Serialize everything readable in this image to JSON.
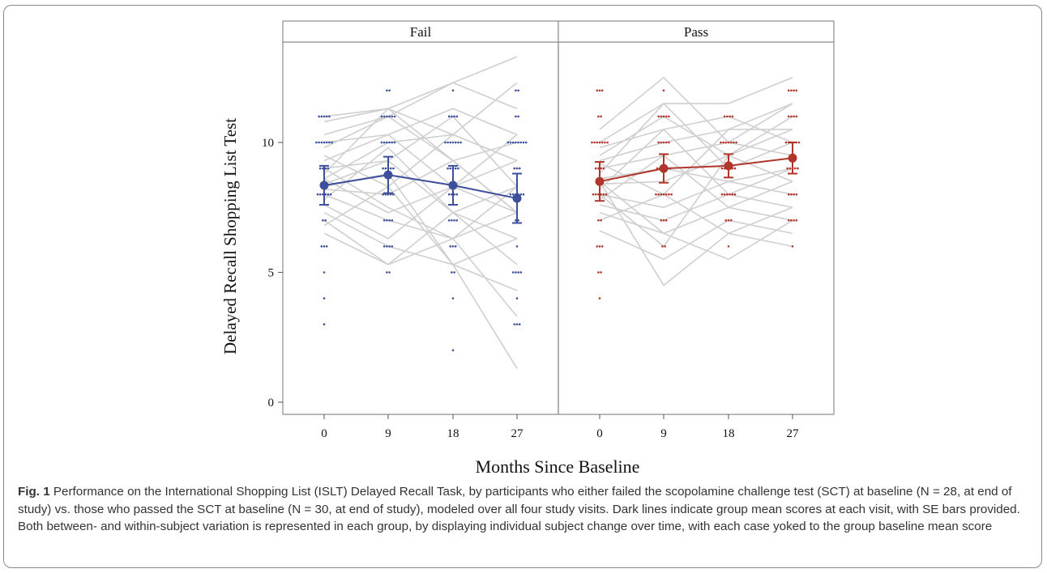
{
  "chart_data": {
    "type": "scatter",
    "title": "",
    "xlabel": "Months Since Baseline",
    "ylabel": "Delayed Recall Shopping List Test",
    "ylim": [
      0,
      14
    ],
    "yticks": [
      0,
      5,
      10
    ],
    "xticks": [
      0,
      9,
      18,
      27
    ],
    "grid": false,
    "panels": [
      {
        "name": "Fail",
        "color": "#3d4f9b",
        "mean_series": {
          "x": [
            0,
            9,
            18,
            27
          ],
          "y": [
            8.35,
            8.75,
            8.35,
            7.85
          ]
        },
        "se": [
          0.75,
          0.7,
          0.75,
          0.95
        ],
        "points": [
          {
            "x": 0,
            "y": 11,
            "n": 5
          },
          {
            "x": 0,
            "y": 10,
            "n": 7
          },
          {
            "x": 0,
            "y": 9,
            "n": 4
          },
          {
            "x": 0,
            "y": 8,
            "n": 6
          },
          {
            "x": 0,
            "y": 7,
            "n": 2
          },
          {
            "x": 0,
            "y": 6,
            "n": 3
          },
          {
            "x": 0,
            "y": 5,
            "n": 1
          },
          {
            "x": 0,
            "y": 4,
            "n": 1
          },
          {
            "x": 0,
            "y": 3,
            "n": 1
          },
          {
            "x": 9,
            "y": 12,
            "n": 2
          },
          {
            "x": 9,
            "y": 11,
            "n": 6
          },
          {
            "x": 9,
            "y": 10,
            "n": 6
          },
          {
            "x": 9,
            "y": 9,
            "n": 5
          },
          {
            "x": 9,
            "y": 8,
            "n": 5
          },
          {
            "x": 9,
            "y": 7,
            "n": 4
          },
          {
            "x": 9,
            "y": 6,
            "n": 4
          },
          {
            "x": 9,
            "y": 5,
            "n": 2
          },
          {
            "x": 18,
            "y": 12,
            "n": 1
          },
          {
            "x": 18,
            "y": 11,
            "n": 4
          },
          {
            "x": 18,
            "y": 10,
            "n": 7
          },
          {
            "x": 18,
            "y": 9,
            "n": 5
          },
          {
            "x": 18,
            "y": 8,
            "n": 4
          },
          {
            "x": 18,
            "y": 7,
            "n": 4
          },
          {
            "x": 18,
            "y": 6,
            "n": 3
          },
          {
            "x": 18,
            "y": 5,
            "n": 2
          },
          {
            "x": 18,
            "y": 4,
            "n": 1
          },
          {
            "x": 18,
            "y": 2,
            "n": 1
          },
          {
            "x": 27,
            "y": 12,
            "n": 2
          },
          {
            "x": 27,
            "y": 11,
            "n": 2
          },
          {
            "x": 27,
            "y": 10,
            "n": 8
          },
          {
            "x": 27,
            "y": 9,
            "n": 3
          },
          {
            "x": 27,
            "y": 8,
            "n": 6
          },
          {
            "x": 27,
            "y": 7,
            "n": 2
          },
          {
            "x": 27,
            "y": 6,
            "n": 1
          },
          {
            "x": 27,
            "y": 5,
            "n": 4
          },
          {
            "x": 27,
            "y": 4,
            "n": 1
          },
          {
            "x": 27,
            "y": 3,
            "n": 3
          }
        ]
      },
      {
        "name": "Pass",
        "color": "#b0362b",
        "mean_series": {
          "x": [
            0,
            9,
            18,
            27
          ],
          "y": [
            8.5,
            9.0,
            9.1,
            9.4
          ]
        },
        "se": [
          0.75,
          0.55,
          0.45,
          0.6
        ],
        "points": [
          {
            "x": 0,
            "y": 12,
            "n": 3
          },
          {
            "x": 0,
            "y": 11,
            "n": 2
          },
          {
            "x": 0,
            "y": 10,
            "n": 7
          },
          {
            "x": 0,
            "y": 9,
            "n": 4
          },
          {
            "x": 0,
            "y": 8,
            "n": 6
          },
          {
            "x": 0,
            "y": 7,
            "n": 2
          },
          {
            "x": 0,
            "y": 6,
            "n": 3
          },
          {
            "x": 0,
            "y": 5,
            "n": 2
          },
          {
            "x": 0,
            "y": 4,
            "n": 1
          },
          {
            "x": 9,
            "y": 12,
            "n": 1
          },
          {
            "x": 9,
            "y": 11,
            "n": 5
          },
          {
            "x": 9,
            "y": 10,
            "n": 5
          },
          {
            "x": 9,
            "y": 9,
            "n": 6
          },
          {
            "x": 9,
            "y": 8,
            "n": 7
          },
          {
            "x": 9,
            "y": 7,
            "n": 3
          },
          {
            "x": 9,
            "y": 6,
            "n": 2
          },
          {
            "x": 18,
            "y": 11,
            "n": 4
          },
          {
            "x": 18,
            "y": 10,
            "n": 7
          },
          {
            "x": 18,
            "y": 9,
            "n": 6
          },
          {
            "x": 18,
            "y": 8,
            "n": 6
          },
          {
            "x": 18,
            "y": 7,
            "n": 3
          },
          {
            "x": 18,
            "y": 6,
            "n": 1
          },
          {
            "x": 27,
            "y": 12,
            "n": 4
          },
          {
            "x": 27,
            "y": 11,
            "n": 4
          },
          {
            "x": 27,
            "y": 10,
            "n": 6
          },
          {
            "x": 27,
            "y": 9,
            "n": 5
          },
          {
            "x": 27,
            "y": 8,
            "n": 4
          },
          {
            "x": 27,
            "y": 7,
            "n": 4
          },
          {
            "x": 27,
            "y": 6,
            "n": 1
          }
        ]
      }
    ],
    "trajectory_color": "#cfcfcf",
    "trajectories": [
      {
        "panel": 0,
        "y": [
          11.0,
          11.3,
          12.3,
          13.3
        ]
      },
      {
        "panel": 0,
        "y": [
          10.8,
          11.3,
          10.3,
          12.3
        ]
      },
      {
        "panel": 0,
        "y": [
          10.3,
          11.0,
          12.3,
          11.3
        ]
      },
      {
        "panel": 0,
        "y": [
          10.0,
          10.3,
          11.3,
          10.3
        ]
      },
      {
        "panel": 0,
        "y": [
          9.8,
          11.0,
          9.3,
          10.0
        ]
      },
      {
        "panel": 0,
        "y": [
          9.5,
          8.3,
          10.3,
          9.3
        ]
      },
      {
        "panel": 0,
        "y": [
          9.3,
          10.3,
          8.3,
          10.3
        ]
      },
      {
        "panel": 0,
        "y": [
          9.0,
          9.3,
          11.0,
          8.3
        ]
      },
      {
        "panel": 0,
        "y": [
          8.8,
          11.3,
          9.3,
          7.3
        ]
      },
      {
        "panel": 0,
        "y": [
          8.6,
          7.3,
          8.3,
          9.3
        ]
      },
      {
        "panel": 0,
        "y": [
          8.4,
          9.3,
          7.3,
          8.3
        ]
      },
      {
        "panel": 0,
        "y": [
          8.2,
          8.0,
          9.3,
          7.3
        ]
      },
      {
        "panel": 0,
        "y": [
          8.0,
          7.0,
          6.3,
          8.3
        ]
      },
      {
        "panel": 0,
        "y": [
          7.8,
          9.8,
          7.3,
          6.3
        ]
      },
      {
        "panel": 0,
        "y": [
          7.6,
          6.3,
          8.3,
          7.3
        ]
      },
      {
        "panel": 0,
        "y": [
          7.3,
          6.0,
          5.3,
          6.3
        ]
      },
      {
        "panel": 0,
        "y": [
          7.0,
          5.3,
          7.3,
          5.3
        ]
      },
      {
        "panel": 0,
        "y": [
          6.8,
          8.3,
          5.3,
          4.3
        ]
      },
      {
        "panel": 0,
        "y": [
          6.5,
          5.3,
          6.3,
          3.3
        ]
      },
      {
        "panel": 0,
        "y": [
          8.3,
          8.8,
          5.3,
          1.3
        ]
      },
      {
        "panel": 0,
        "y": [
          9.0,
          7.5,
          6.3,
          7.3
        ]
      },
      {
        "panel": 0,
        "y": [
          8.6,
          10.0,
          10.3,
          9.3
        ]
      },
      {
        "panel": 1,
        "y": [
          10.5,
          12.5,
          10.0,
          11.5
        ]
      },
      {
        "panel": 1,
        "y": [
          10.0,
          11.5,
          11.5,
          12.5
        ]
      },
      {
        "panel": 1,
        "y": [
          9.8,
          10.5,
          11.0,
          10.0
        ]
      },
      {
        "panel": 1,
        "y": [
          9.5,
          11.0,
          9.5,
          11.0
        ]
      },
      {
        "panel": 1,
        "y": [
          9.3,
          10.0,
          10.5,
          10.5
        ]
      },
      {
        "panel": 1,
        "y": [
          9.0,
          9.5,
          10.0,
          9.5
        ]
      },
      {
        "panel": 1,
        "y": [
          8.8,
          11.5,
          9.0,
          10.0
        ]
      },
      {
        "panel": 1,
        "y": [
          8.6,
          9.0,
          8.5,
          9.0
        ]
      },
      {
        "panel": 1,
        "y": [
          8.4,
          8.5,
          9.5,
          8.5
        ]
      },
      {
        "panel": 1,
        "y": [
          8.2,
          10.5,
          8.0,
          9.0
        ]
      },
      {
        "panel": 1,
        "y": [
          8.0,
          7.5,
          8.5,
          8.0
        ]
      },
      {
        "panel": 1,
        "y": [
          7.8,
          9.5,
          7.5,
          8.5
        ]
      },
      {
        "panel": 1,
        "y": [
          7.6,
          7.0,
          8.0,
          7.5
        ]
      },
      {
        "panel": 1,
        "y": [
          7.3,
          6.5,
          7.5,
          7.0
        ]
      },
      {
        "panel": 1,
        "y": [
          7.0,
          8.0,
          6.5,
          7.5
        ]
      },
      {
        "panel": 1,
        "y": [
          6.6,
          5.5,
          7.0,
          6.5
        ]
      },
      {
        "panel": 1,
        "y": [
          8.5,
          4.5,
          6.5,
          6.0
        ]
      },
      {
        "panel": 1,
        "y": [
          8.5,
          6.5,
          5.5,
          7.0
        ]
      },
      {
        "panel": 1,
        "y": [
          9.2,
          8.0,
          10.5,
          11.5
        ]
      },
      {
        "panel": 1,
        "y": [
          8.0,
          6.0,
          9.5,
          10.5
        ]
      }
    ]
  },
  "caption": {
    "label": "Fig. 1",
    "text": "Performance on the International Shopping List (ISLT) Delayed Recall Task, by participants who either failed the scopolamine challenge test (SCT) at baseline (N = 28, at end of study) vs. those who passed the SCT at baseline (N = 30, at end of study), modeled over all four study visits. Dark lines indicate group mean scores at each visit, with SE bars provided. Both between- and within-subject variation is represented in each group, by displaying individual subject change over time, with each case yoked to the group baseline mean score"
  }
}
